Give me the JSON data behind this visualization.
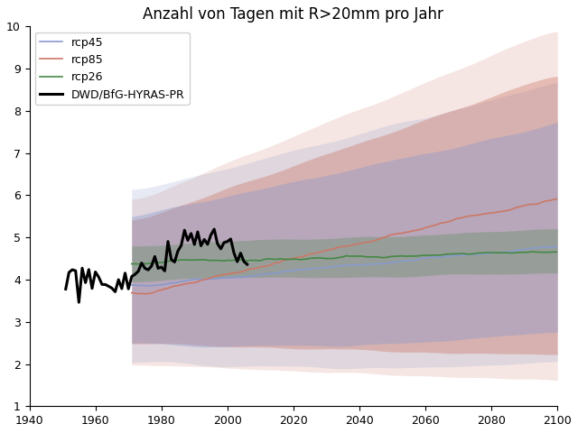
{
  "title": "Anzahl von Tagen mit R>20mm pro Jahr",
  "xlim": [
    1940,
    2100
  ],
  "ylim": [
    1,
    10
  ],
  "xticks": [
    1940,
    1960,
    1980,
    2000,
    2020,
    2040,
    2060,
    2080,
    2100
  ],
  "yticks": [
    1,
    2,
    3,
    4,
    5,
    6,
    7,
    8,
    9,
    10
  ],
  "legend_entries": [
    "rcp45",
    "rcp85",
    "rcp26",
    "DWD/BfG-HYRAS-PR"
  ],
  "colors": {
    "rcp45": "#8899cc",
    "rcp85": "#cc7766",
    "rcp26": "#448844",
    "obs": "#000000"
  }
}
